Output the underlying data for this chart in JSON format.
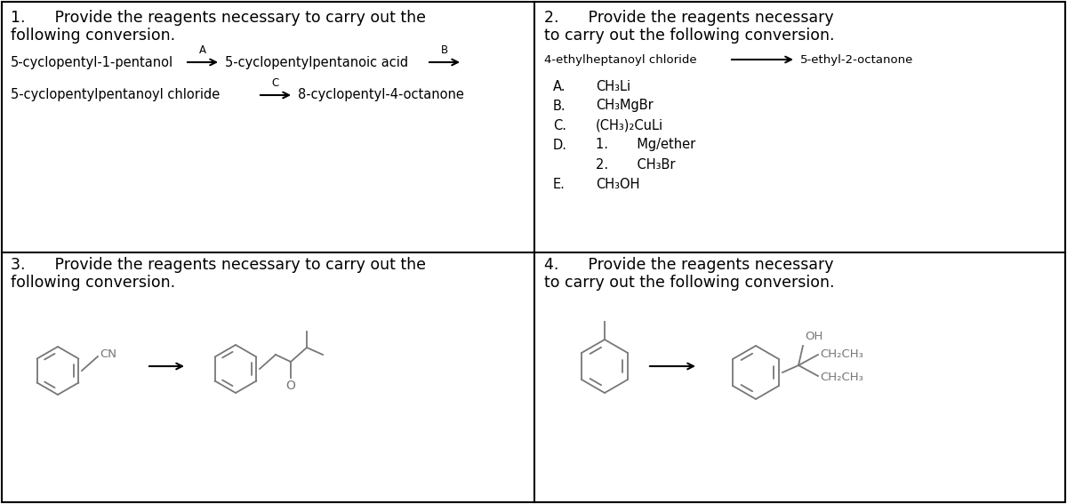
{
  "bg_color": "#ffffff",
  "border_color": "#000000",
  "text_color": "#000000",
  "title_fontsize": 12.5,
  "body_fontsize": 10.5,
  "small_fontsize": 9.5,
  "chem_color": "#777777",
  "q1_line1": "1.      Provide the reagents necessary to carry out the",
  "q1_line2": "following conversion.",
  "q2_line1": "2.      Provide the reagents necessary",
  "q2_line2": "to carry out the following conversion.",
  "q3_line1": "3.      Provide the reagents necessary to carry out the",
  "q3_line2": "following conversion.",
  "q4_line1": "4.      Provide the reagents necessary",
  "q4_line2": "to carry out the following conversion.",
  "q1_r1_left": "5-cyclopentyl-1-pentanol",
  "q1_r1_mid": "5-cyclopentylpentanoic acid",
  "q1_r2_left": "5-cyclopentylpentanoyl chloride",
  "q1_r2_right": "8-cyclopentyl-4-octanone",
  "q2_left": "4-ethylheptanoyl chloride",
  "q2_right": "5-ethyl-2-octanone",
  "q2_options": [
    [
      "A.",
      "CH₃Li"
    ],
    [
      "B.",
      "CH₃MgBr"
    ],
    [
      "C.",
      "(CH₃)₂CuLi"
    ],
    [
      "D.",
      "1.       Mg/ether"
    ],
    [
      "",
      "2.       CH₃Br"
    ],
    [
      "E.",
      "CH₃OH"
    ]
  ]
}
